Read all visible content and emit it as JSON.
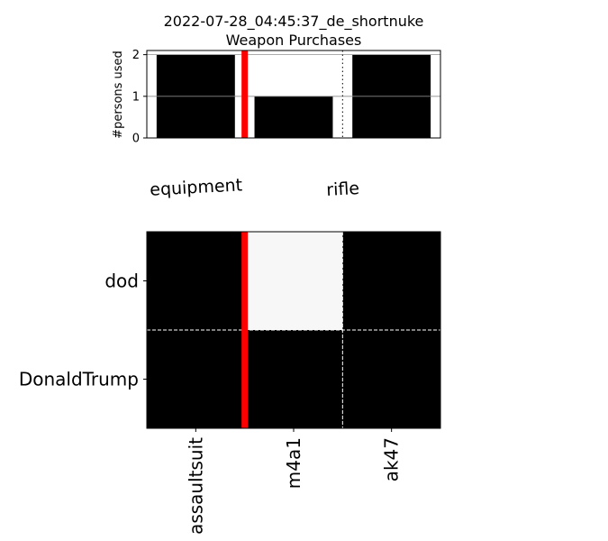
{
  "chart_data": [
    {
      "type": "bar",
      "title": "2022-07-28_04:45:37_de_shortnuke",
      "subtitle": "Weapon Purchases",
      "ylabel": "#persons used",
      "ylim": [
        0,
        2.1
      ],
      "yticks": [
        "0",
        "1",
        "2"
      ],
      "categories": [
        "assaultsuit",
        "m4a1",
        "ak47"
      ],
      "values": [
        2,
        1,
        2
      ],
      "bar_color": "#000000",
      "group_labels": [
        "equipment",
        "rifle"
      ],
      "red_divider_after": 0,
      "dotted_divider_after": 1,
      "grid": "horizontal"
    },
    {
      "type": "heatmap",
      "rows": [
        "dod",
        "DonaldTrump"
      ],
      "columns": [
        "assaultsuit",
        "m4a1",
        "ak47"
      ],
      "values": [
        [
          1,
          0,
          1
        ],
        [
          1,
          1,
          1
        ]
      ],
      "colors": {
        "filled": "#000000",
        "empty": "#f7f7f7",
        "divider": "#ff0000"
      },
      "red_divider_after": 0
    }
  ]
}
